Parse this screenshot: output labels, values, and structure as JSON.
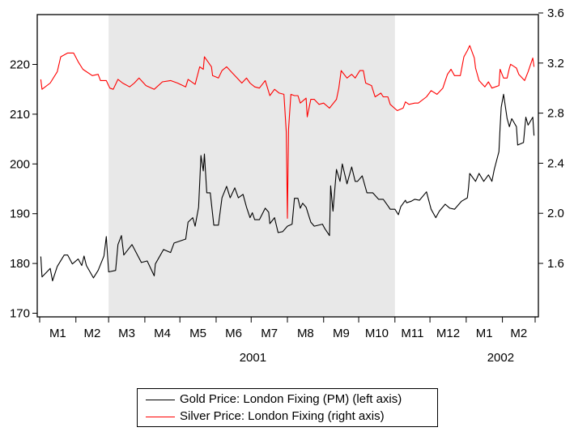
{
  "chart_data": {
    "type": "line",
    "title": "",
    "recession_shading": {
      "start": "2001-03-01",
      "end": "2001-11-01",
      "color": "#e8e8e8"
    },
    "x_range": [
      "2001-01-01",
      "2002-03-01"
    ],
    "x_tick_labels": [
      "M1",
      "M2",
      "M3",
      "M4",
      "M5",
      "M6",
      "M7",
      "M8",
      "M9",
      "M10",
      "M11",
      "M12",
      "M1",
      "M2"
    ],
    "x_year_labels": [
      "2001",
      "2002"
    ],
    "left_axis": {
      "ylim": [
        170,
        230
      ],
      "ticks": [
        "170",
        "180",
        "190",
        "200",
        "210",
        "220"
      ]
    },
    "right_axis": {
      "ylim": [
        1.2,
        3.6
      ],
      "ticks": [
        "1.6",
        "2.0",
        "2.4",
        "2.8",
        "3.2",
        "3.6"
      ]
    },
    "grid": false,
    "legend_placement": "bottom",
    "series": [
      {
        "name": "Gold Price: London Fixing (PM) (left axis)",
        "axis": "left",
        "color": "#000000",
        "points": [
          [
            "2001-01-02",
            181.4
          ],
          [
            "2001-01-03",
            177.3
          ],
          [
            "2001-01-10",
            179.0
          ],
          [
            "2001-01-12",
            176.5
          ],
          [
            "2001-01-16",
            179.4
          ],
          [
            "2001-01-22",
            181.7
          ],
          [
            "2001-01-25",
            181.7
          ],
          [
            "2001-01-29",
            179.9
          ],
          [
            "2001-02-03",
            180.9
          ],
          [
            "2001-02-06",
            179.6
          ],
          [
            "2001-02-08",
            181.5
          ],
          [
            "2001-02-10",
            179.6
          ],
          [
            "2001-02-16",
            177.1
          ],
          [
            "2001-02-20",
            178.6
          ],
          [
            "2001-02-25",
            181.5
          ],
          [
            "2001-02-27",
            185.4
          ],
          [
            "2001-03-01",
            178.3
          ],
          [
            "2001-03-07",
            178.6
          ],
          [
            "2001-03-09",
            183.8
          ],
          [
            "2001-03-12",
            185.6
          ],
          [
            "2001-03-14",
            181.7
          ],
          [
            "2001-03-21",
            183.8
          ],
          [
            "2001-03-29",
            180.2
          ],
          [
            "2001-04-03",
            180.5
          ],
          [
            "2001-04-09",
            177.5
          ],
          [
            "2001-04-10",
            179.9
          ],
          [
            "2001-04-17",
            182.8
          ],
          [
            "2001-04-23",
            182.2
          ],
          [
            "2001-04-26",
            184.1
          ],
          [
            "2001-05-06",
            184.9
          ],
          [
            "2001-05-08",
            188.3
          ],
          [
            "2001-05-12",
            189.2
          ],
          [
            "2001-05-14",
            187.5
          ],
          [
            "2001-05-17",
            191.3
          ],
          [
            "2001-05-19",
            201.7
          ],
          [
            "2001-05-21",
            198.6
          ],
          [
            "2001-05-22",
            202.0
          ],
          [
            "2001-05-24",
            194.2
          ],
          [
            "2001-05-27",
            194.2
          ],
          [
            "2001-05-30",
            187.7
          ],
          [
            "2001-06-03",
            187.7
          ],
          [
            "2001-06-06",
            193.2
          ],
          [
            "2001-06-10",
            195.5
          ],
          [
            "2001-06-13",
            193.2
          ],
          [
            "2001-06-17",
            195.2
          ],
          [
            "2001-06-20",
            193.2
          ],
          [
            "2001-06-24",
            193.9
          ],
          [
            "2001-06-27",
            191.3
          ],
          [
            "2001-06-30",
            189.2
          ],
          [
            "2001-07-02",
            190.2
          ],
          [
            "2001-07-04",
            188.8
          ],
          [
            "2001-07-08",
            188.8
          ],
          [
            "2001-07-13",
            191.1
          ],
          [
            "2001-07-16",
            190.3
          ],
          [
            "2001-07-17",
            188.0
          ],
          [
            "2001-07-21",
            189.2
          ],
          [
            "2001-07-24",
            186.2
          ],
          [
            "2001-07-28",
            186.4
          ],
          [
            "2001-08-01",
            187.5
          ],
          [
            "2001-08-05",
            187.9
          ],
          [
            "2001-08-07",
            193.1
          ],
          [
            "2001-08-10",
            193.1
          ],
          [
            "2001-08-12",
            191.1
          ],
          [
            "2001-08-14",
            192.1
          ],
          [
            "2001-08-17",
            191.3
          ],
          [
            "2001-08-21",
            188.3
          ],
          [
            "2001-08-24",
            187.5
          ],
          [
            "2001-08-31",
            187.9
          ],
          [
            "2001-09-02",
            187.0
          ],
          [
            "2001-09-06",
            185.6
          ],
          [
            "2001-09-07",
            195.6
          ],
          [
            "2001-09-09",
            190.5
          ],
          [
            "2001-09-12",
            198.9
          ],
          [
            "2001-09-15",
            196.5
          ],
          [
            "2001-09-17",
            200.0
          ],
          [
            "2001-09-21",
            196.0
          ],
          [
            "2001-09-25",
            199.4
          ],
          [
            "2001-09-28",
            196.5
          ],
          [
            "2001-09-30",
            196.5
          ],
          [
            "2001-10-04",
            197.6
          ],
          [
            "2001-10-08",
            194.2
          ],
          [
            "2001-10-13",
            194.2
          ],
          [
            "2001-10-18",
            192.9
          ],
          [
            "2001-10-22",
            192.9
          ],
          [
            "2001-10-26",
            191.6
          ],
          [
            "2001-10-28",
            190.9
          ],
          [
            "2001-11-01",
            190.9
          ],
          [
            "2001-11-04",
            189.8
          ],
          [
            "2001-11-06",
            191.4
          ],
          [
            "2001-11-10",
            192.7
          ],
          [
            "2001-11-11",
            192.2
          ],
          [
            "2001-11-15",
            192.5
          ],
          [
            "2001-11-18",
            192.9
          ],
          [
            "2001-11-22",
            192.7
          ],
          [
            "2001-11-28",
            194.4
          ],
          [
            "2001-12-02",
            190.9
          ],
          [
            "2001-12-06",
            189.2
          ],
          [
            "2001-12-09",
            190.5
          ],
          [
            "2001-12-14",
            191.9
          ],
          [
            "2001-12-18",
            191.1
          ],
          [
            "2001-12-22",
            190.9
          ],
          [
            "2001-12-28",
            192.5
          ],
          [
            "2002-01-02",
            193.2
          ],
          [
            "2002-01-03",
            195.2
          ],
          [
            "2002-01-04",
            198.1
          ],
          [
            "2002-01-09",
            196.5
          ],
          [
            "2002-01-12",
            198.1
          ],
          [
            "2002-01-16",
            196.5
          ],
          [
            "2002-01-20",
            197.8
          ],
          [
            "2002-01-23",
            196.5
          ],
          [
            "2002-01-25",
            198.9
          ],
          [
            "2002-01-29",
            202.5
          ],
          [
            "2002-01-30",
            207.3
          ],
          [
            "2002-01-31",
            211.4
          ],
          [
            "2002-02-02",
            214.0
          ],
          [
            "2002-02-05",
            209.1
          ],
          [
            "2002-02-07",
            207.5
          ],
          [
            "2002-02-09",
            209.1
          ],
          [
            "2002-02-13",
            207.5
          ],
          [
            "2002-02-14",
            203.8
          ],
          [
            "2002-02-19",
            204.3
          ],
          [
            "2002-02-21",
            209.4
          ],
          [
            "2002-02-23",
            207.8
          ],
          [
            "2002-02-27",
            209.4
          ],
          [
            "2002-02-28",
            205.7
          ]
        ]
      },
      {
        "name": "Silver Price: London Fixing (right axis)",
        "axis": "right",
        "color": "#ff0000",
        "points": [
          [
            "2001-01-02",
            3.07
          ],
          [
            "2001-01-03",
            2.99
          ],
          [
            "2001-01-10",
            3.04
          ],
          [
            "2001-01-16",
            3.13
          ],
          [
            "2001-01-19",
            3.25
          ],
          [
            "2001-01-25",
            3.28
          ],
          [
            "2001-01-30",
            3.28
          ],
          [
            "2001-02-03",
            3.21
          ],
          [
            "2001-02-07",
            3.15
          ],
          [
            "2001-02-15",
            3.1
          ],
          [
            "2001-02-20",
            3.11
          ],
          [
            "2001-02-22",
            3.06
          ],
          [
            "2001-02-27",
            3.06
          ],
          [
            "2001-03-02",
            3.0
          ],
          [
            "2001-03-05",
            2.99
          ],
          [
            "2001-03-09",
            3.07
          ],
          [
            "2001-03-13",
            3.04
          ],
          [
            "2001-03-19",
            3.01
          ],
          [
            "2001-03-23",
            3.04
          ],
          [
            "2001-03-27",
            3.08
          ],
          [
            "2001-04-02",
            3.02
          ],
          [
            "2001-04-09",
            2.99
          ],
          [
            "2001-04-16",
            3.05
          ],
          [
            "2001-04-23",
            3.06
          ],
          [
            "2001-04-29",
            3.04
          ],
          [
            "2001-05-06",
            3.01
          ],
          [
            "2001-05-08",
            3.07
          ],
          [
            "2001-05-14",
            3.03
          ],
          [
            "2001-05-18",
            3.17
          ],
          [
            "2001-05-21",
            3.15
          ],
          [
            "2001-05-22",
            3.25
          ],
          [
            "2001-05-28",
            3.17
          ],
          [
            "2001-05-29",
            3.1
          ],
          [
            "2001-06-03",
            3.08
          ],
          [
            "2001-06-06",
            3.14
          ],
          [
            "2001-06-10",
            3.17
          ],
          [
            "2001-06-15",
            3.12
          ],
          [
            "2001-06-19",
            3.08
          ],
          [
            "2001-06-23",
            3.04
          ],
          [
            "2001-06-27",
            3.08
          ],
          [
            "2001-06-30",
            3.04
          ],
          [
            "2001-07-04",
            3.01
          ],
          [
            "2001-07-08",
            3.0
          ],
          [
            "2001-07-13",
            3.06
          ],
          [
            "2001-07-15",
            3.0
          ],
          [
            "2001-07-17",
            2.94
          ],
          [
            "2001-07-21",
            2.99
          ],
          [
            "2001-07-25",
            2.96
          ],
          [
            "2001-07-29",
            2.95
          ],
          [
            "2001-07-31",
            2.65
          ],
          [
            "2001-08-01",
            1.96
          ],
          [
            "2001-08-02",
            2.67
          ],
          [
            "2001-08-04",
            2.95
          ],
          [
            "2001-08-07",
            2.94
          ],
          [
            "2001-08-10",
            2.94
          ],
          [
            "2001-08-12",
            2.88
          ],
          [
            "2001-08-17",
            2.92
          ],
          [
            "2001-08-18",
            2.77
          ],
          [
            "2001-08-21",
            2.91
          ],
          [
            "2001-08-24",
            2.91
          ],
          [
            "2001-08-28",
            2.87
          ],
          [
            "2001-09-01",
            2.88
          ],
          [
            "2001-09-06",
            2.84
          ],
          [
            "2001-09-12",
            2.91
          ],
          [
            "2001-09-14",
            3.0
          ],
          [
            "2001-09-16",
            3.14
          ],
          [
            "2001-09-21",
            3.08
          ],
          [
            "2001-09-25",
            3.11
          ],
          [
            "2001-09-28",
            3.08
          ],
          [
            "2001-10-02",
            3.14
          ],
          [
            "2001-10-05",
            3.14
          ],
          [
            "2001-10-07",
            3.04
          ],
          [
            "2001-10-12",
            3.02
          ],
          [
            "2001-10-15",
            2.93
          ],
          [
            "2001-10-20",
            2.96
          ],
          [
            "2001-10-22",
            2.93
          ],
          [
            "2001-10-26",
            2.93
          ],
          [
            "2001-10-28",
            2.87
          ],
          [
            "2001-11-03",
            2.82
          ],
          [
            "2001-11-08",
            2.84
          ],
          [
            "2001-11-10",
            2.89
          ],
          [
            "2001-11-13",
            2.87
          ],
          [
            "2001-11-18",
            2.88
          ],
          [
            "2001-11-21",
            2.88
          ],
          [
            "2001-11-28",
            2.93
          ],
          [
            "2001-12-02",
            2.98
          ],
          [
            "2001-12-07",
            2.95
          ],
          [
            "2001-12-12",
            3.0
          ],
          [
            "2001-12-16",
            3.11
          ],
          [
            "2001-12-19",
            3.15
          ],
          [
            "2001-12-22",
            3.1
          ],
          [
            "2001-12-27",
            3.1
          ],
          [
            "2001-12-30",
            3.25
          ],
          [
            "2002-01-02",
            3.3
          ],
          [
            "2002-01-04",
            3.34
          ],
          [
            "2002-01-08",
            3.24
          ],
          [
            "2002-01-09",
            3.16
          ],
          [
            "2002-01-12",
            3.06
          ],
          [
            "2002-01-17",
            3.01
          ],
          [
            "2002-01-20",
            3.05
          ],
          [
            "2002-01-23",
            3.0
          ],
          [
            "2002-01-29",
            3.02
          ],
          [
            "2002-01-30",
            3.15
          ],
          [
            "2002-02-02",
            3.08
          ],
          [
            "2002-02-05",
            3.08
          ],
          [
            "2002-02-07",
            3.16
          ],
          [
            "2002-02-08",
            3.19
          ],
          [
            "2002-02-13",
            3.16
          ],
          [
            "2002-02-15",
            3.11
          ],
          [
            "2002-02-20",
            3.06
          ],
          [
            "2002-02-23",
            3.13
          ],
          [
            "2002-02-27",
            3.24
          ],
          [
            "2002-02-28",
            3.17
          ]
        ]
      }
    ]
  }
}
